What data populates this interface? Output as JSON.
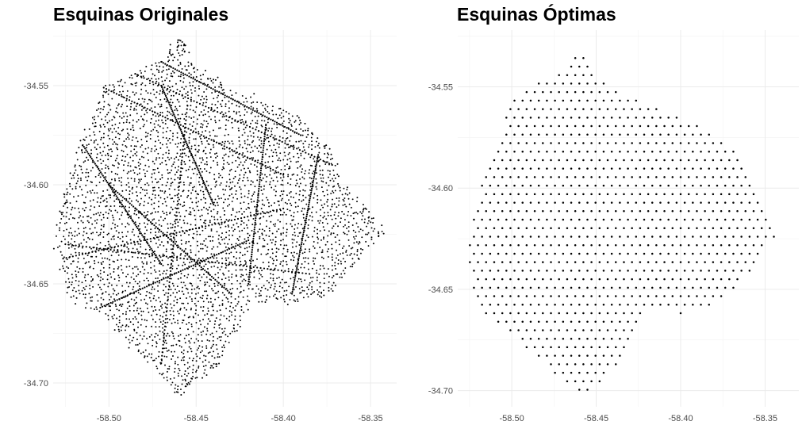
{
  "chart_data": [
    {
      "type": "scatter",
      "title": "Esquinas Originales",
      "xlabel": "",
      "ylabel": "",
      "xlim": [
        -58.532,
        -58.335
      ],
      "ylim": [
        -34.712,
        -34.522
      ],
      "x_ticks": [
        -58.5,
        -58.45,
        -58.4,
        -58.35
      ],
      "x_tick_labels": [
        "-58.50",
        "-58.45",
        "-58.40",
        "-58.35"
      ],
      "y_ticks": [
        -34.55,
        -34.6,
        -34.65,
        -34.7
      ],
      "y_tick_labels": [
        "-34.55",
        "-34.60",
        "-34.65",
        "-34.70"
      ],
      "grid": true,
      "legend": "none",
      "point_color": "#000000",
      "density": "dense",
      "boundary": [
        [
          -58.531,
          -34.627
        ],
        [
          -58.525,
          -34.603
        ],
        [
          -58.503,
          -34.551
        ],
        [
          -58.467,
          -34.536
        ],
        [
          -58.459,
          -34.526
        ],
        [
          -58.452,
          -34.54
        ],
        [
          -58.43,
          -34.552
        ],
        [
          -58.4,
          -34.561
        ],
        [
          -58.378,
          -34.578
        ],
        [
          -58.37,
          -34.588
        ],
        [
          -58.368,
          -34.6
        ],
        [
          -58.358,
          -34.605
        ],
        [
          -58.343,
          -34.624
        ],
        [
          -58.353,
          -34.633
        ],
        [
          -58.372,
          -34.653
        ],
        [
          -58.392,
          -34.659
        ],
        [
          -58.418,
          -34.657
        ],
        [
          -58.437,
          -34.69
        ],
        [
          -58.455,
          -34.701
        ],
        [
          -58.461,
          -34.706
        ],
        [
          -58.502,
          -34.667
        ],
        [
          -58.523,
          -34.655
        ]
      ],
      "streets": [
        [
          [
            -58.503,
            -34.551
          ],
          [
            -58.4,
            -34.595
          ]
        ],
        [
          [
            -58.49,
            -34.542
          ],
          [
            -58.372,
            -34.59
          ]
        ],
        [
          [
            -58.47,
            -34.538
          ],
          [
            -58.39,
            -34.575
          ]
        ],
        [
          [
            -58.53,
            -34.638
          ],
          [
            -58.4,
            -34.612
          ]
        ],
        [
          [
            -58.525,
            -34.63
          ],
          [
            -58.385,
            -34.645
          ]
        ],
        [
          [
            -58.505,
            -34.662
          ],
          [
            -58.42,
            -34.628
          ]
        ],
        [
          [
            -58.47,
            -34.55
          ],
          [
            -58.44,
            -34.61
          ]
        ],
        [
          [
            -58.455,
            -34.56
          ],
          [
            -58.47,
            -34.69
          ]
        ],
        [
          [
            -58.5,
            -34.6
          ],
          [
            -58.43,
            -34.655
          ]
        ],
        [
          [
            -58.515,
            -34.58
          ],
          [
            -58.47,
            -34.64
          ]
        ],
        [
          [
            -58.38,
            -34.585
          ],
          [
            -58.395,
            -34.655
          ]
        ],
        [
          [
            -58.41,
            -34.57
          ],
          [
            -58.42,
            -34.65
          ]
        ]
      ]
    },
    {
      "type": "scatter",
      "title": "Esquinas Óptimas",
      "xlabel": "",
      "ylabel": "",
      "xlim": [
        -58.532,
        -58.33
      ],
      "ylim": [
        -34.708,
        -34.522
      ],
      "x_ticks": [
        -58.5,
        -58.45,
        -58.4,
        -58.35
      ],
      "x_tick_labels": [
        "-58.50",
        "-58.45",
        "-58.40",
        "-58.35"
      ],
      "y_ticks": [
        -34.55,
        -34.6,
        -34.65,
        -34.7
      ],
      "y_tick_labels": [
        "-34.55",
        "-34.60",
        "-34.65",
        "-34.70"
      ],
      "grid": true,
      "legend": "none",
      "point_color": "#000000",
      "density": "sparse",
      "grid_spacing": [
        0.0048,
        0.0042
      ],
      "boundary": [
        [
          -58.527,
          -34.633
        ],
        [
          -58.521,
          -34.606
        ],
        [
          -58.5,
          -34.557
        ],
        [
          -58.465,
          -34.538
        ],
        [
          -58.459,
          -34.532
        ],
        [
          -58.453,
          -34.543
        ],
        [
          -58.43,
          -34.555
        ],
        [
          -58.4,
          -34.565
        ],
        [
          -58.372,
          -34.577
        ],
        [
          -58.362,
          -34.592
        ],
        [
          -58.355,
          -34.606
        ],
        [
          -58.342,
          -34.622
        ],
        [
          -58.355,
          -34.637
        ],
        [
          -58.374,
          -34.656
        ],
        [
          -58.398,
          -34.662
        ],
        [
          -58.42,
          -34.66
        ],
        [
          -58.44,
          -34.69
        ],
        [
          -58.458,
          -34.704
        ],
        [
          -58.502,
          -34.671
        ],
        [
          -58.52,
          -34.659
        ]
      ]
    }
  ]
}
